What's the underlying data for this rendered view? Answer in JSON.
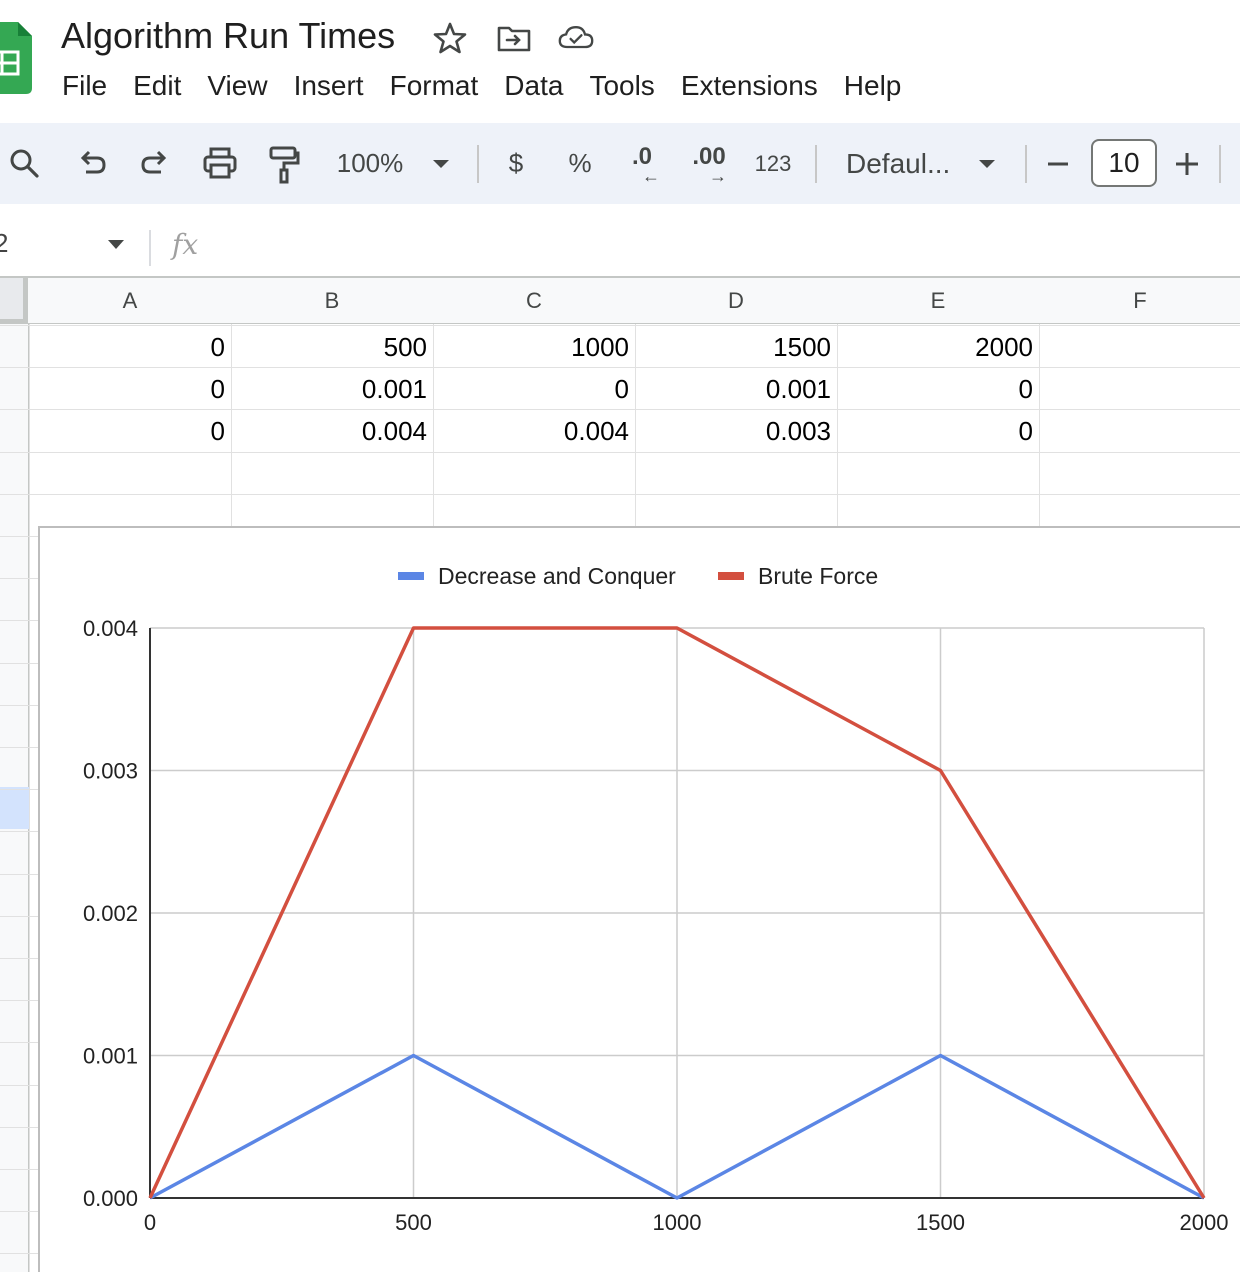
{
  "header": {
    "app_icon": "sheets-logo-icon",
    "title": "Algorithm Run Times",
    "title_icons": [
      "star-icon",
      "move-to-folder-icon",
      "cloud-saved-icon"
    ]
  },
  "menu": {
    "items": [
      "File",
      "Edit",
      "View",
      "Insert",
      "Format",
      "Data",
      "Tools",
      "Extensions",
      "Help"
    ]
  },
  "toolbar": {
    "zoom": "100%",
    "currency_label": "$",
    "percent_label": "%",
    "decrease_decimal_label": ".0",
    "increase_decimal_label": ".00",
    "number_format_label": "123",
    "font_family": "Defaul...",
    "font_size": "10",
    "icons": [
      "search-icon",
      "undo-icon",
      "redo-icon",
      "print-icon",
      "paint-format-icon",
      "zoom-dropdown-icon",
      "font-dropdown-icon",
      "minus-icon",
      "plus-icon"
    ]
  },
  "formula_bar": {
    "name_box": "2",
    "fx_label": "fx",
    "formula": ""
  },
  "sheet": {
    "columns": [
      "A",
      "B",
      "C",
      "D",
      "E",
      "F"
    ],
    "rows": [
      [
        "0",
        "500",
        "1000",
        "1500",
        "2000",
        ""
      ],
      [
        "0",
        "0.001",
        "0",
        "0.001",
        "0",
        ""
      ],
      [
        "0",
        "0.004",
        "0.004",
        "0.003",
        "0",
        ""
      ]
    ]
  },
  "chart_data": {
    "type": "line",
    "title": "",
    "xlabel": "",
    "ylabel": "",
    "x": [
      0,
      500,
      1000,
      1500,
      2000
    ],
    "x_tick_labels": [
      "0",
      "500",
      "1000",
      "1500",
      "2000"
    ],
    "y_tick_labels": [
      "0.000",
      "0.001",
      "0.002",
      "0.003",
      "0.004"
    ],
    "xlim": [
      0,
      2000
    ],
    "ylim": [
      0,
      0.004
    ],
    "grid": true,
    "legend_position": "top",
    "series": [
      {
        "name": "Decrease and Conquer",
        "values": [
          0,
          0.001,
          0,
          0.001,
          0
        ],
        "color": "#5b86e5"
      },
      {
        "name": "Brute Force",
        "values": [
          0,
          0.004,
          0.004,
          0.003,
          0
        ],
        "color": "#d34f3f"
      }
    ]
  },
  "colors": {
    "toolbar_bg": "#eef2f9",
    "sheets_green": "#34a853",
    "selected_row": "#d3e3fd"
  }
}
